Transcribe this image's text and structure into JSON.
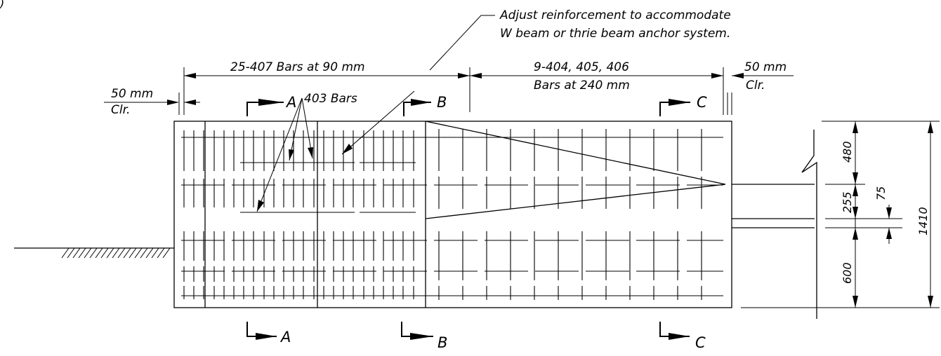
{
  "figure_label": ")",
  "notes": {
    "adjust_line1": "Adjust reinforcement to accommodate",
    "adjust_line2": "W beam or thrie beam anchor system."
  },
  "dimensions": {
    "bars_407": "25-407 Bars at 90 mm",
    "bars_404_line1": "9-404, 405, 406",
    "bars_404_line2": "Bars at 240 mm",
    "clr_left_1": "50 mm",
    "clr_left_2": "Clr.",
    "clr_right_1": "50 mm",
    "clr_right_2": "Clr.",
    "bars_403": "403 Bars",
    "dim_480": "480",
    "dim_255": "255",
    "dim_75": "75",
    "dim_600": "600",
    "dim_1410": "1410"
  },
  "sections": {
    "a": "A",
    "b": "B",
    "c": "C"
  }
}
